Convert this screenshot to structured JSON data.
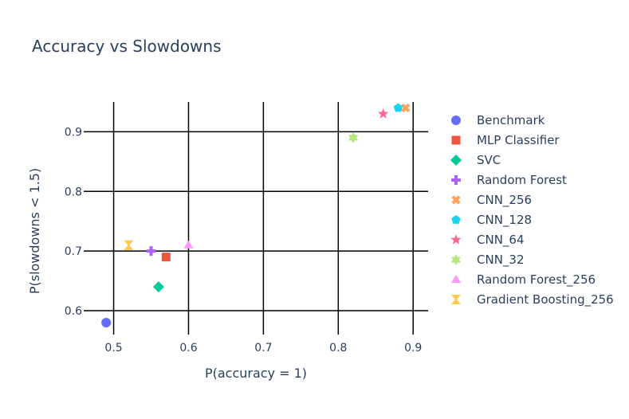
{
  "chart_data": {
    "type": "scatter",
    "title": "Accuracy vs Slowdowns",
    "xlabel": "P(accuracy = 1)",
    "ylabel": "P(slowdowns < 1.5)",
    "xlim": [
      0.46,
      0.92
    ],
    "ylim": [
      0.56,
      0.95
    ],
    "xticks": [
      0.5,
      0.6,
      0.7,
      0.8,
      0.9
    ],
    "yticks": [
      0.6,
      0.7,
      0.8,
      0.9
    ],
    "xtick_labels": [
      "0.5",
      "0.6",
      "0.7",
      "0.8",
      "0.9"
    ],
    "ytick_labels": [
      "0.6",
      "0.7",
      "0.8",
      "0.9"
    ],
    "grid": true,
    "legend_position": "right",
    "series": [
      {
        "name": "Benchmark",
        "x": 0.49,
        "y": 0.58,
        "color": "#636efa",
        "symbol": "circle"
      },
      {
        "name": "MLP Classifier",
        "x": 0.57,
        "y": 0.69,
        "color": "#EF553B",
        "symbol": "square"
      },
      {
        "name": "SVC",
        "x": 0.56,
        "y": 0.64,
        "color": "#00cc96",
        "symbol": "diamond"
      },
      {
        "name": "Random Forest",
        "x": 0.55,
        "y": 0.7,
        "color": "#ab63fa",
        "symbol": "cross"
      },
      {
        "name": "CNN_256",
        "x": 0.89,
        "y": 0.94,
        "color": "#FFA15A",
        "symbol": "x"
      },
      {
        "name": "CNN_128",
        "x": 0.88,
        "y": 0.94,
        "color": "#19d3f3",
        "symbol": "pentagon"
      },
      {
        "name": "CNN_64",
        "x": 0.86,
        "y": 0.93,
        "color": "#FF6692",
        "symbol": "star"
      },
      {
        "name": "CNN_32",
        "x": 0.82,
        "y": 0.89,
        "color": "#B6E880",
        "symbol": "hexagram"
      },
      {
        "name": "Random Forest_256",
        "x": 0.6,
        "y": 0.71,
        "color": "#FF97FF",
        "symbol": "triangle-up"
      },
      {
        "name": "Gradient Boosting_256",
        "x": 0.52,
        "y": 0.71,
        "color": "#FECB52",
        "symbol": "hourglass"
      }
    ]
  }
}
